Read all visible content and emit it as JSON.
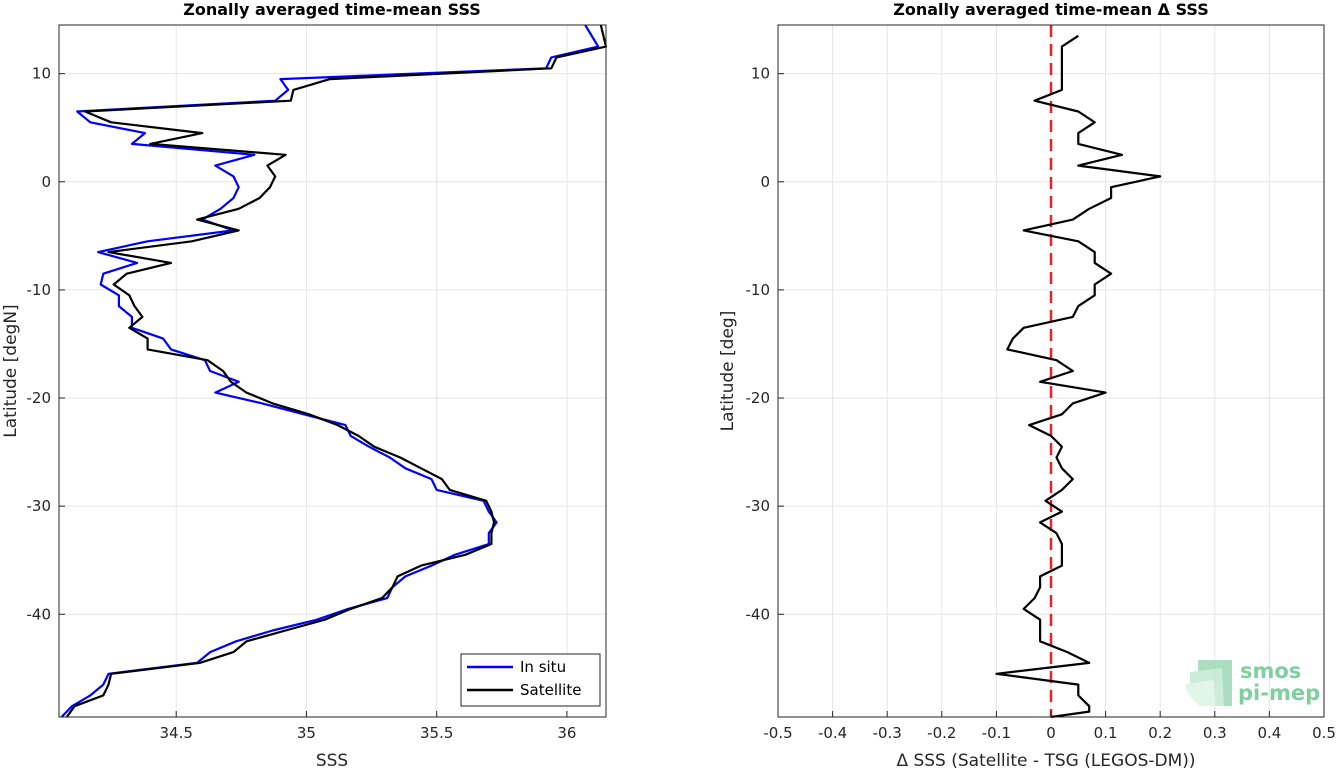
{
  "chart_data": [
    {
      "type": "line",
      "title": "Zonally averaged time-mean SSS",
      "xlabel": "SSS",
      "ylabel": "Latitude [degN]",
      "xlim": [
        34.05,
        36.15
      ],
      "ylim": [
        -49.5,
        14.5
      ],
      "xticks": [
        "34.5",
        "35",
        "35.5",
        "36"
      ],
      "xtick_values": [
        34.5,
        35.0,
        35.5,
        36.0
      ],
      "yticks": [
        "10",
        "0",
        "-10",
        "-20",
        "-30",
        "-40"
      ],
      "ytick_values": [
        10,
        0,
        -10,
        -20,
        -30,
        -40
      ],
      "grid": true,
      "legend_location": "bottom-right",
      "series": [
        {
          "name": "In situ",
          "color": "#0000ff",
          "points": [
            [
              36.07,
              14.5
            ],
            [
              36.12,
              12.5
            ],
            [
              35.94,
              11.5
            ],
            [
              35.92,
              10.5
            ],
            [
              34.9,
              9.5
            ],
            [
              34.93,
              8.5
            ],
            [
              34.88,
              7.5
            ],
            [
              34.12,
              6.5
            ],
            [
              34.17,
              5.5
            ],
            [
              34.38,
              4.5
            ],
            [
              34.33,
              3.5
            ],
            [
              34.8,
              2.5
            ],
            [
              34.65,
              1.5
            ],
            [
              34.72,
              0.5
            ],
            [
              34.74,
              -0.5
            ],
            [
              34.72,
              -1.5
            ],
            [
              34.67,
              -2.5
            ],
            [
              34.6,
              -3.5
            ],
            [
              34.72,
              -4.5
            ],
            [
              34.39,
              -5.5
            ],
            [
              34.2,
              -6.5
            ],
            [
              34.35,
              -7.5
            ],
            [
              34.22,
              -8.5
            ],
            [
              34.21,
              -9.5
            ],
            [
              34.28,
              -10.5
            ],
            [
              34.28,
              -11.5
            ],
            [
              34.33,
              -12.5
            ],
            [
              34.33,
              -13.5
            ],
            [
              34.45,
              -14.5
            ],
            [
              34.48,
              -15.5
            ],
            [
              34.61,
              -16.5
            ],
            [
              34.63,
              -17.5
            ],
            [
              34.74,
              -18.5
            ],
            [
              34.65,
              -19.5
            ],
            [
              34.83,
              -20.5
            ],
            [
              34.99,
              -21.5
            ],
            [
              35.15,
              -22.5
            ],
            [
              35.17,
              -23.5
            ],
            [
              35.24,
              -24.5
            ],
            [
              35.32,
              -25.5
            ],
            [
              35.38,
              -26.5
            ],
            [
              35.48,
              -27.5
            ],
            [
              35.5,
              -28.5
            ],
            [
              35.68,
              -29.5
            ],
            [
              35.7,
              -30.5
            ],
            [
              35.73,
              -31.5
            ],
            [
              35.7,
              -32.5
            ],
            [
              35.7,
              -33.5
            ],
            [
              35.57,
              -34.5
            ],
            [
              35.48,
              -35.5
            ],
            [
              35.38,
              -36.5
            ],
            [
              35.33,
              -37.5
            ],
            [
              35.31,
              -38.5
            ],
            [
              35.16,
              -39.5
            ],
            [
              35.04,
              -40.5
            ],
            [
              34.87,
              -41.5
            ],
            [
              34.73,
              -42.5
            ],
            [
              34.63,
              -43.5
            ],
            [
              34.58,
              -44.5
            ],
            [
              34.24,
              -45.5
            ],
            [
              34.22,
              -46.5
            ],
            [
              34.17,
              -47.5
            ],
            [
              34.1,
              -48.5
            ],
            [
              34.06,
              -49.5
            ]
          ]
        },
        {
          "name": "Satellite",
          "color": "#000000",
          "points": [
            [
              36.13,
              14.5
            ],
            [
              36.15,
              12.5
            ],
            [
              35.96,
              11.5
            ],
            [
              35.94,
              10.5
            ],
            [
              35.09,
              9.5
            ],
            [
              34.95,
              8.5
            ],
            [
              34.94,
              7.5
            ],
            [
              34.15,
              6.5
            ],
            [
              34.25,
              5.5
            ],
            [
              34.6,
              4.5
            ],
            [
              34.4,
              3.5
            ],
            [
              34.92,
              2.5
            ],
            [
              34.85,
              1.5
            ],
            [
              34.88,
              0.5
            ],
            [
              34.86,
              -0.5
            ],
            [
              34.82,
              -1.5
            ],
            [
              34.74,
              -2.5
            ],
            [
              34.58,
              -3.5
            ],
            [
              34.74,
              -4.5
            ],
            [
              34.56,
              -5.5
            ],
            [
              34.24,
              -6.5
            ],
            [
              34.48,
              -7.5
            ],
            [
              34.31,
              -8.5
            ],
            [
              34.26,
              -9.5
            ],
            [
              34.32,
              -10.5
            ],
            [
              34.34,
              -11.5
            ],
            [
              34.37,
              -12.5
            ],
            [
              34.32,
              -13.5
            ],
            [
              34.39,
              -14.5
            ],
            [
              34.39,
              -15.5
            ],
            [
              34.62,
              -16.5
            ],
            [
              34.68,
              -17.5
            ],
            [
              34.71,
              -18.5
            ],
            [
              34.77,
              -19.5
            ],
            [
              34.87,
              -20.5
            ],
            [
              35.01,
              -21.5
            ],
            [
              35.12,
              -22.5
            ],
            [
              35.2,
              -23.5
            ],
            [
              35.26,
              -24.5
            ],
            [
              35.36,
              -25.5
            ],
            [
              35.44,
              -26.5
            ],
            [
              35.52,
              -27.5
            ],
            [
              35.55,
              -28.5
            ],
            [
              35.69,
              -29.5
            ],
            [
              35.71,
              -30.5
            ],
            [
              35.72,
              -31.5
            ],
            [
              35.71,
              -32.5
            ],
            [
              35.71,
              -33.5
            ],
            [
              35.61,
              -34.5
            ],
            [
              35.44,
              -35.5
            ],
            [
              35.35,
              -36.5
            ],
            [
              35.33,
              -37.5
            ],
            [
              35.29,
              -38.5
            ],
            [
              35.17,
              -39.5
            ],
            [
              35.07,
              -40.5
            ],
            [
              34.92,
              -41.5
            ],
            [
              34.77,
              -42.5
            ],
            [
              34.72,
              -43.5
            ],
            [
              34.59,
              -44.5
            ],
            [
              34.25,
              -45.5
            ],
            [
              34.24,
              -46.5
            ],
            [
              34.22,
              -47.5
            ],
            [
              34.11,
              -48.5
            ],
            [
              34.08,
              -49.5
            ]
          ]
        }
      ]
    },
    {
      "type": "line",
      "title": "Zonally averaged time-mean Δ SSS",
      "xlabel": "Δ SSS (Satellite - TSG (LEGOS-DM))",
      "ylabel": "Latitude [deg]",
      "xlim": [
        -0.5,
        0.5
      ],
      "ylim": [
        -49.5,
        14.5
      ],
      "xticks": [
        "-0.5",
        "-0.4",
        "-0.3",
        "-0.2",
        "-0.1",
        "0",
        "0.1",
        "0.2",
        "0.3",
        "0.4",
        "0.5"
      ],
      "xtick_values": [
        -0.5,
        -0.4,
        -0.3,
        -0.2,
        -0.1,
        0,
        0.1,
        0.2,
        0.3,
        0.4,
        0.5
      ],
      "yticks": [
        "10",
        "0",
        "-10",
        "-20",
        "-30",
        "-40"
      ],
      "ytick_values": [
        10,
        0,
        -10,
        -20,
        -30,
        -40
      ],
      "grid": true,
      "reference_line": {
        "x": 0,
        "color": "#e8212a",
        "style": "dashed"
      },
      "series": [
        {
          "color": "#000000",
          "points": [
            [
              0.05,
              13.5
            ],
            [
              0.02,
              12.5
            ],
            [
              0.02,
              11.5
            ],
            [
              0.02,
              10.5
            ],
            [
              0.02,
              9.5
            ],
            [
              0.02,
              8.5
            ],
            [
              -0.03,
              7.5
            ],
            [
              0.05,
              6.5
            ],
            [
              0.08,
              5.5
            ],
            [
              0.05,
              4.5
            ],
            [
              0.05,
              3.5
            ],
            [
              0.13,
              2.5
            ],
            [
              0.05,
              1.5
            ],
            [
              0.2,
              0.5
            ],
            [
              0.11,
              -0.5
            ],
            [
              0.11,
              -1.5
            ],
            [
              0.07,
              -2.5
            ],
            [
              0.04,
              -3.5
            ],
            [
              -0.05,
              -4.5
            ],
            [
              0.05,
              -5.5
            ],
            [
              0.08,
              -6.5
            ],
            [
              0.08,
              -7.5
            ],
            [
              0.11,
              -8.5
            ],
            [
              0.08,
              -9.5
            ],
            [
              0.08,
              -10.5
            ],
            [
              0.05,
              -11.5
            ],
            [
              0.04,
              -12.5
            ],
            [
              -0.05,
              -13.5
            ],
            [
              -0.07,
              -14.5
            ],
            [
              -0.08,
              -15.5
            ],
            [
              0.01,
              -16.5
            ],
            [
              0.04,
              -17.5
            ],
            [
              -0.02,
              -18.5
            ],
            [
              0.1,
              -19.5
            ],
            [
              0.04,
              -20.5
            ],
            [
              0.02,
              -21.5
            ],
            [
              -0.04,
              -22.5
            ],
            [
              0.0,
              -23.5
            ],
            [
              0.02,
              -24.5
            ],
            [
              0.01,
              -25.5
            ],
            [
              0.02,
              -26.5
            ],
            [
              0.04,
              -27.5
            ],
            [
              0.02,
              -28.5
            ],
            [
              -0.01,
              -29.5
            ],
            [
              0.02,
              -30.5
            ],
            [
              -0.02,
              -31.5
            ],
            [
              0.01,
              -32.5
            ],
            [
              0.02,
              -33.5
            ],
            [
              0.02,
              -34.5
            ],
            [
              0.02,
              -35.5
            ],
            [
              -0.02,
              -36.5
            ],
            [
              -0.02,
              -37.5
            ],
            [
              -0.03,
              -38.5
            ],
            [
              -0.05,
              -39.5
            ],
            [
              -0.02,
              -40.5
            ],
            [
              -0.02,
              -41.5
            ],
            [
              -0.02,
              -42.5
            ],
            [
              0.03,
              -43.5
            ],
            [
              0.07,
              -44.5
            ],
            [
              -0.1,
              -45.5
            ],
            [
              0.05,
              -46.5
            ],
            [
              0.05,
              -47.5
            ],
            [
              0.07,
              -48.5
            ],
            [
              0.07,
              -49.0
            ],
            [
              0.0,
              -49.5
            ]
          ]
        }
      ]
    }
  ],
  "legend": {
    "items": [
      {
        "label": "In situ",
        "color": "#0000ff"
      },
      {
        "label": "Satellite",
        "color": "#000000"
      }
    ]
  },
  "logo": {
    "line1": "smos",
    "line2": "pi-mep"
  }
}
